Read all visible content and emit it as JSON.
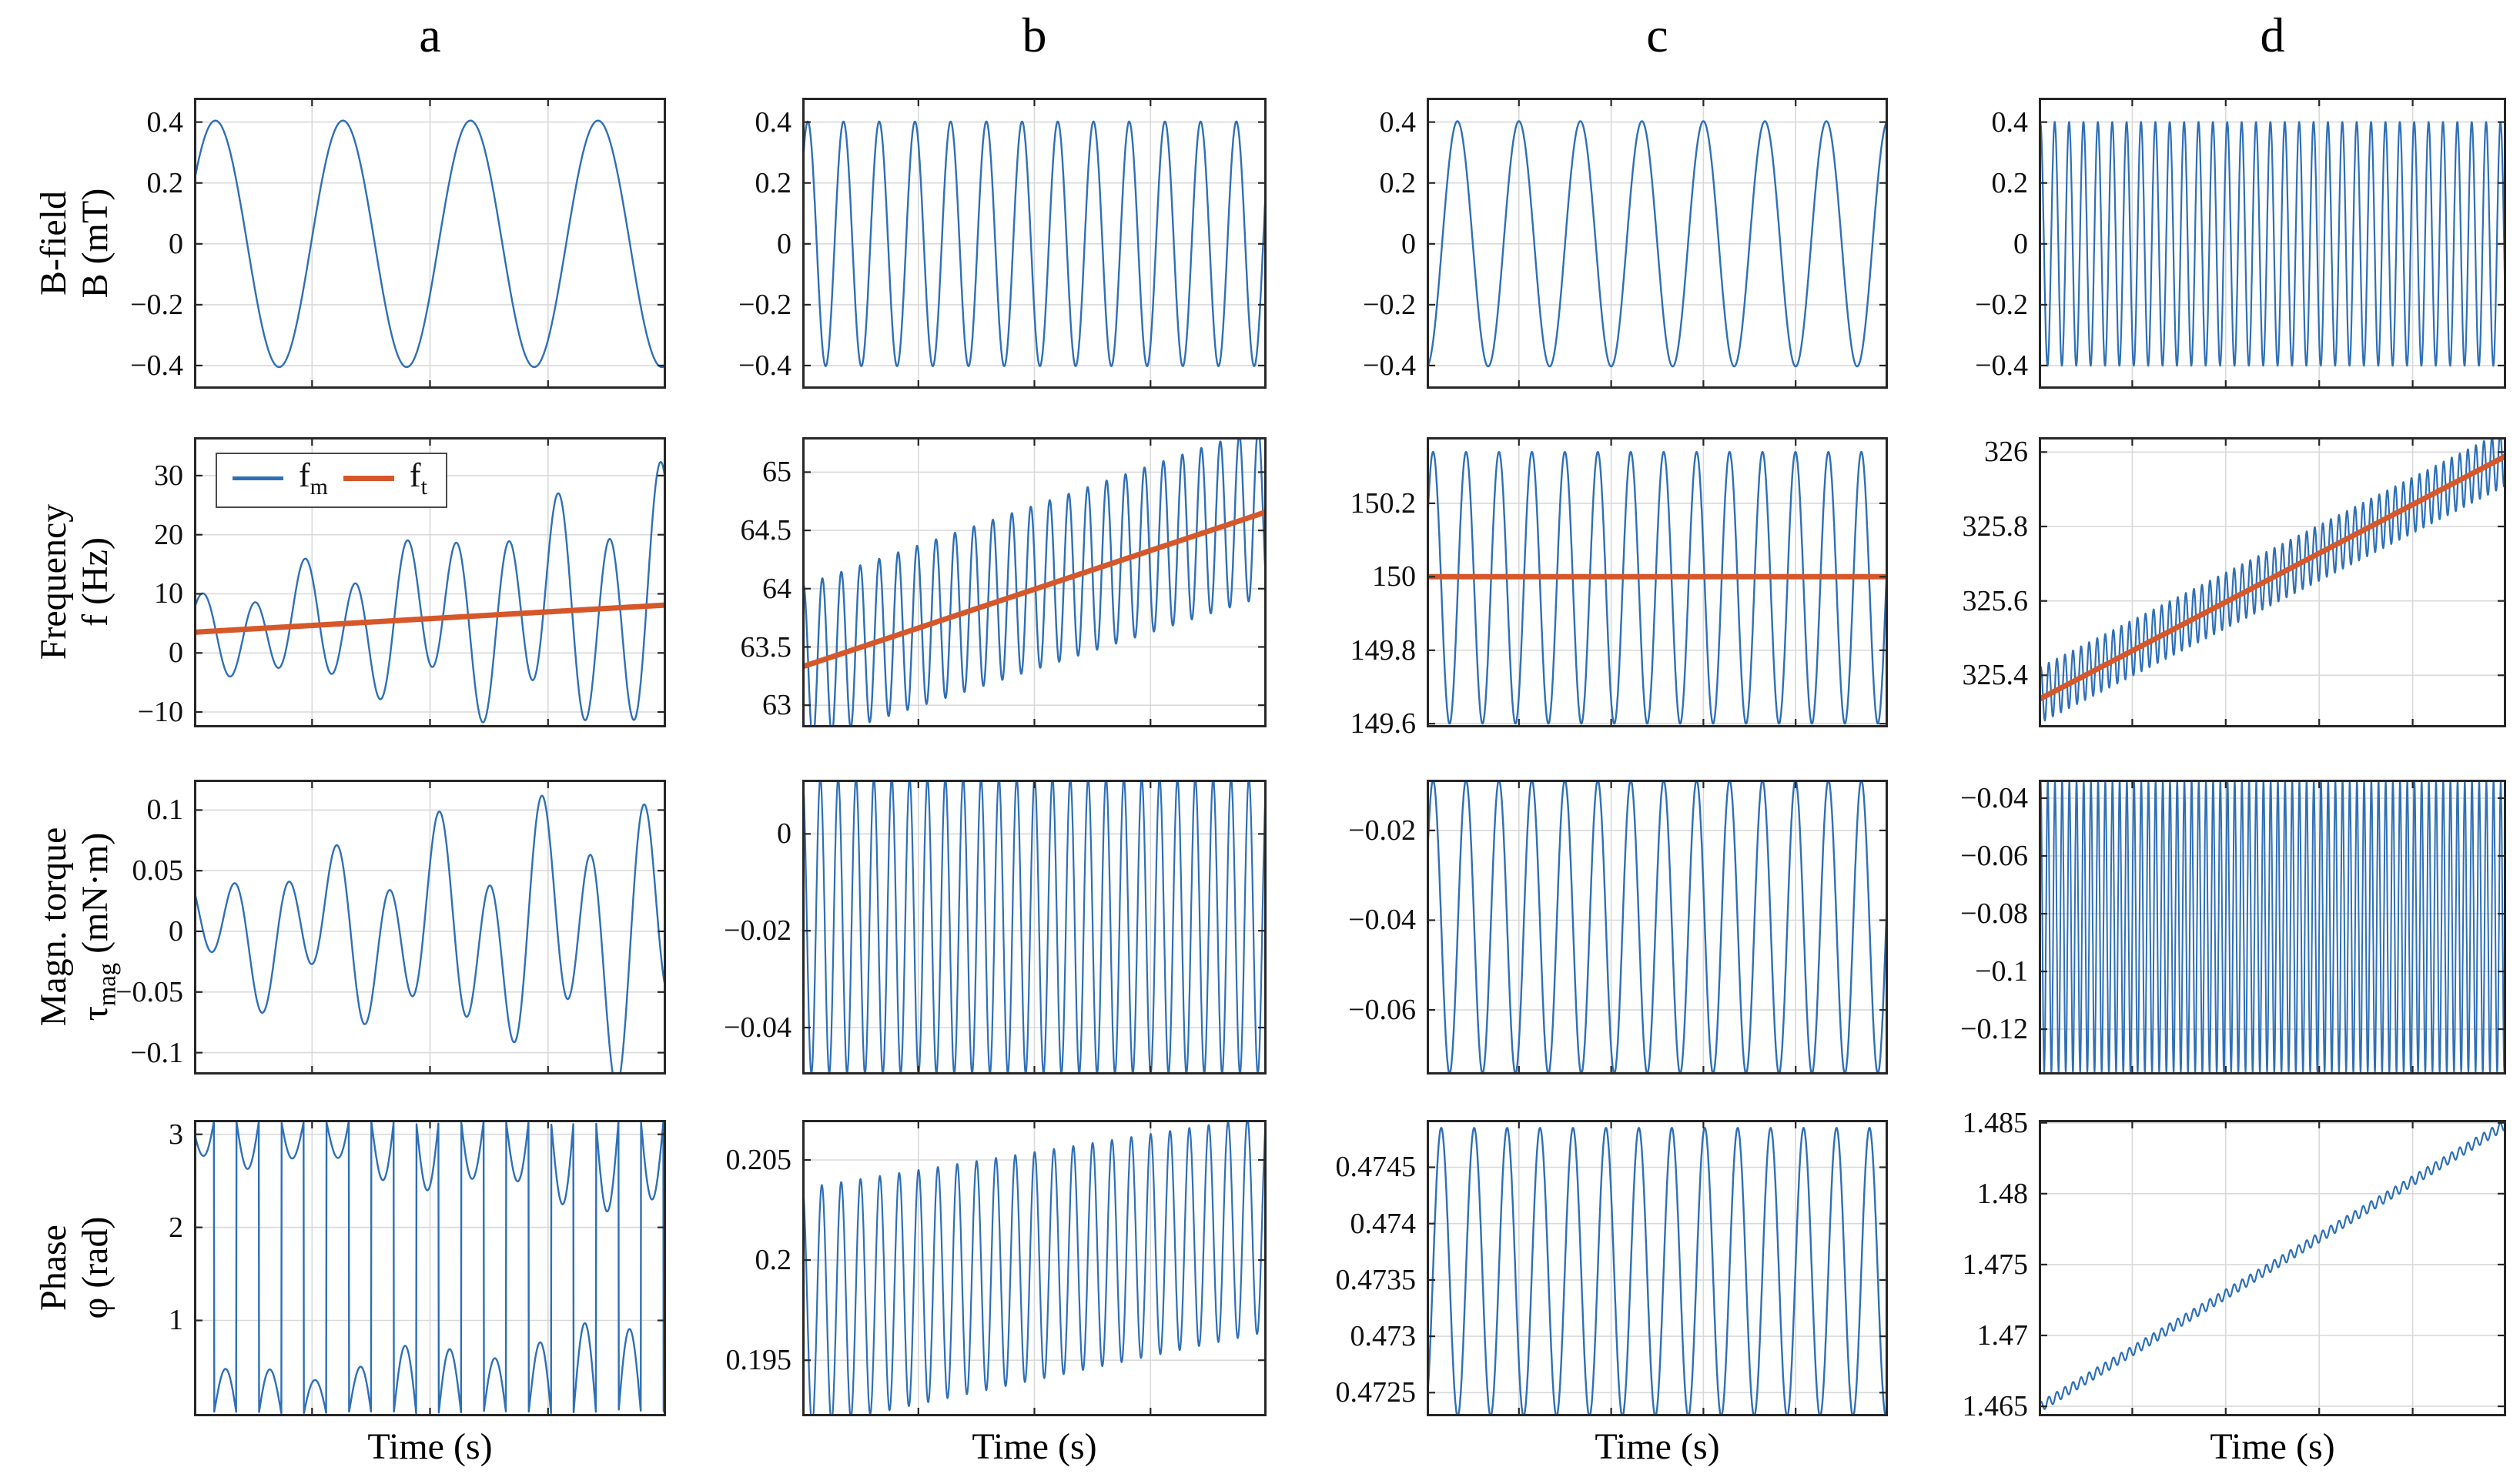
{
  "figure": {
    "colors": {
      "measured_blue": "#2e6fb7",
      "target_orange": "#d6572a",
      "grid": "#d9d9d9",
      "axis_box": "#262626",
      "text": "#000000"
    },
    "columns": [
      {
        "title": "a"
      },
      {
        "title": "b"
      },
      {
        "title": "c"
      },
      {
        "title": "d"
      }
    ],
    "rows": [
      {
        "label": "B-field",
        "sym": "B",
        "sub": "",
        "rest": " (mT)"
      },
      {
        "label": "Frequency",
        "sym": "f",
        "sub": "",
        "rest": " (Hz)"
      },
      {
        "label": "Magn. torque",
        "sym": "τ",
        "sub": "mag",
        "rest": " (mN·m)"
      },
      {
        "label": "Phase",
        "sym": "φ",
        "sub": "",
        "rest": " (rad)"
      }
    ],
    "xlabel": "Time (s)",
    "legend": {
      "entries": [
        {
          "sym": "f",
          "sub": "m",
          "color": "measured_blue"
        },
        {
          "sym": "f",
          "sub": "t",
          "color": "target_orange"
        }
      ]
    }
  },
  "chart_data": [
    {
      "id": "bfield-a",
      "type": "line",
      "row": "B-field",
      "col": "a",
      "ylim": [
        -0.476,
        0.48
      ],
      "ytick_values": [
        0.4,
        0.2,
        0,
        -0.2,
        -0.4
      ],
      "ytick_labels": [
        "0.4",
        "0.2",
        "0",
        "−0.2",
        "−0.4"
      ],
      "x_interior_ticks": 3,
      "series": [
        {
          "name": "B",
          "color": "measured_blue",
          "width": 2.4,
          "gen": {
            "kind": "sine",
            "cycles": 3.7,
            "phase": 0.52,
            "amp0": 0.405,
            "amp1": 0.405,
            "mean0": 0,
            "mean1": 0
          }
        }
      ]
    },
    {
      "id": "bfield-b",
      "type": "line",
      "row": "B-field",
      "col": "b",
      "ylim": [
        -0.476,
        0.48
      ],
      "ytick_values": [
        0.4,
        0.2,
        0,
        -0.2,
        -0.4
      ],
      "ytick_labels": [
        "0.4",
        "0.2",
        "0",
        "−0.2",
        "−0.4"
      ],
      "x_interior_ticks": 3,
      "series": [
        {
          "name": "B",
          "color": "measured_blue",
          "width": 2.4,
          "gen": {
            "kind": "sine",
            "cycles": 13,
            "phase": 0.6,
            "amp0": 0.402,
            "amp1": 0.402,
            "mean0": 0,
            "mean1": 0
          }
        }
      ]
    },
    {
      "id": "bfield-c",
      "type": "line",
      "row": "B-field",
      "col": "c",
      "ylim": [
        -0.476,
        0.48
      ],
      "ytick_values": [
        0.4,
        0.2,
        0,
        -0.2,
        -0.4
      ],
      "ytick_labels": [
        "0.4",
        "0.2",
        "0",
        "−0.2",
        "−0.4"
      ],
      "x_interior_ticks": 4,
      "series": [
        {
          "name": "B",
          "color": "measured_blue",
          "width": 2.4,
          "gen": {
            "kind": "sine",
            "cycles": 7.5,
            "phase": -1.5708,
            "amp0": 0.403,
            "amp1": 0.403,
            "mean0": 0,
            "mean1": 0
          }
        }
      ]
    },
    {
      "id": "bfield-d",
      "type": "line",
      "row": "B-field",
      "col": "d",
      "ylim": [
        -0.476,
        0.48
      ],
      "ytick_values": [
        0.4,
        0.2,
        0,
        -0.2,
        -0.4
      ],
      "ytick_labels": [
        "0.4",
        "0.2",
        "0",
        "−0.2",
        "−0.4"
      ],
      "x_interior_ticks": 4,
      "series": [
        {
          "name": "B",
          "color": "measured_blue",
          "width": 2.2,
          "gen": {
            "kind": "sine",
            "cycles": 32.5,
            "phase": 0.9,
            "amp0": 0.401,
            "amp1": 0.401,
            "mean0": 0,
            "mean1": 0
          }
        }
      ]
    },
    {
      "id": "frequency-a",
      "type": "line",
      "row": "Frequency",
      "col": "a",
      "ylim": [
        -12.6,
        36.5
      ],
      "ytick_values": [
        30,
        20,
        10,
        0,
        -10
      ],
      "ytick_labels": [
        "30",
        "20",
        "10",
        "0",
        "−10"
      ],
      "x_interior_ticks": 3,
      "has_legend": true,
      "series": [
        {
          "name": "f_m",
          "color": "measured_blue",
          "width": 2.4,
          "gen": {
            "kind": "multi",
            "mean0": 3.5,
            "mean1": 8,
            "comps": [
              {
                "c": 9.3,
                "p": 0.4,
                "a0": 5,
                "a1": 19
              },
              {
                "c": 3.9,
                "p": 2.1,
                "a0": 2.2,
                "a1": 6
              }
            ]
          }
        },
        {
          "name": "f_t",
          "color": "target_orange",
          "width": 7,
          "gen": {
            "kind": "line",
            "mean0": 3.5,
            "mean1": 8.1
          }
        }
      ]
    },
    {
      "id": "frequency-b",
      "type": "line",
      "row": "Frequency",
      "col": "b",
      "ylim": [
        62.81,
        65.3
      ],
      "ytick_values": [
        65,
        64.5,
        64,
        63.5,
        63
      ],
      "ytick_labels": [
        "65",
        "64.5",
        "64",
        "63.5",
        "63"
      ],
      "x_interior_ticks": 3,
      "series": [
        {
          "name": "f_m",
          "color": "measured_blue",
          "width": 2.4,
          "gen": {
            "kind": "sine",
            "cycles": 24.5,
            "phase": 1.2,
            "amp0": 0.68,
            "amp1": 0.73,
            "mean0": 63.35,
            "mean1": 64.67
          }
        },
        {
          "name": "f_t",
          "color": "target_orange",
          "width": 7,
          "gen": {
            "kind": "line",
            "mean0": 63.33,
            "mean1": 64.66
          }
        }
      ]
    },
    {
      "id": "frequency-c",
      "type": "line",
      "row": "Frequency",
      "col": "c",
      "ylim": [
        149.59,
        150.38
      ],
      "ytick_values": [
        150.2,
        150,
        149.8,
        149.6
      ],
      "ytick_labels": [
        "150.2",
        "150",
        "149.8",
        "149.6"
      ],
      "x_interior_ticks": 4,
      "series": [
        {
          "name": "f_m",
          "color": "measured_blue",
          "width": 2.4,
          "gen": {
            "kind": "sine",
            "cycles": 14,
            "phase": 0.35,
            "amp0": 0.37,
            "amp1": 0.37,
            "mean0": 149.97,
            "mean1": 149.97
          }
        },
        {
          "name": "f_t",
          "color": "target_orange",
          "width": 7,
          "gen": {
            "kind": "line",
            "mean0": 150.0,
            "mean1": 150.0
          }
        }
      ]
    },
    {
      "id": "frequency-d",
      "type": "line",
      "row": "Frequency",
      "col": "d",
      "ylim": [
        325.26,
        326.04
      ],
      "ytick_values": [
        326,
        325.8,
        325.6,
        325.4
      ],
      "ytick_labels": [
        "326",
        "325.8",
        "325.6",
        "325.4"
      ],
      "x_interior_ticks": 4,
      "series": [
        {
          "name": "f_m",
          "color": "measured_blue",
          "width": 2.2,
          "gen": {
            "kind": "sine",
            "cycles": 58,
            "phase": 0,
            "amp0": 0.075,
            "amp1": 0.075,
            "mean0": 325.345,
            "mean1": 325.985
          }
        },
        {
          "name": "f_t",
          "color": "target_orange",
          "width": 7,
          "gen": {
            "kind": "line",
            "mean0": 325.335,
            "mean1": 325.99
          }
        }
      ]
    },
    {
      "id": "torque-a",
      "type": "line",
      "row": "Magn. torque",
      "col": "a",
      "ylim": [
        -0.118,
        0.125
      ],
      "ytick_values": [
        0.1,
        0.05,
        0,
        -0.05,
        -0.1
      ],
      "ytick_labels": [
        "0.1",
        "0.05",
        "0",
        "−0.05",
        "−0.1"
      ],
      "x_interior_ticks": 3,
      "series": [
        {
          "name": "tau_mag",
          "color": "measured_blue",
          "width": 2.4,
          "gen": {
            "kind": "multi",
            "mean0": 0,
            "mean1": 0,
            "comps": [
              {
                "c": 9.3,
                "p": 2.6,
                "a0": 0.035,
                "a1": 0.095
              },
              {
                "c": 4.1,
                "p": 0.9,
                "a0": 0.02,
                "a1": 0.045
              }
            ]
          }
        }
      ]
    },
    {
      "id": "torque-b",
      "type": "line",
      "row": "Magn. torque",
      "col": "b",
      "ylim": [
        -0.0497,
        0.0112
      ],
      "ytick_values": [
        0,
        -0.02,
        -0.04
      ],
      "ytick_labels": [
        "0",
        "−0.02",
        "−0.04"
      ],
      "x_interior_ticks": 3,
      "series": [
        {
          "name": "tau_mag",
          "color": "measured_blue",
          "width": 2.2,
          "gen": {
            "kind": "sine",
            "cycles": 26,
            "phase": 1.5,
            "amp0": 0.0305,
            "amp1": 0.0305,
            "mean0": -0.019,
            "mean1": -0.019
          }
        }
      ]
    },
    {
      "id": "torque-c",
      "type": "line",
      "row": "Magn. torque",
      "col": "c",
      "ylim": [
        -0.0744,
        -0.0087
      ],
      "ytick_values": [
        -0.02,
        -0.04,
        -0.06
      ],
      "ytick_labels": [
        "−0.02",
        "−0.04",
        "−0.06"
      ],
      "x_interior_ticks": 4,
      "series": [
        {
          "name": "tau_mag",
          "color": "measured_blue",
          "width": 2.4,
          "gen": {
            "kind": "sine",
            "cycles": 14,
            "phase": 0.35,
            "amp0": 0.0327,
            "amp1": 0.0327,
            "mean0": -0.0415,
            "mean1": -0.0415
          }
        }
      ]
    },
    {
      "id": "torque-d",
      "type": "line",
      "row": "Magn. torque",
      "col": "d",
      "ylim": [
        -0.1357,
        -0.0336
      ],
      "ytick_values": [
        -0.04,
        -0.06,
        -0.08,
        -0.1,
        -0.12
      ],
      "ytick_labels": [
        "−0.04",
        "−0.06",
        "−0.08",
        "−0.1",
        "−0.12"
      ],
      "x_interior_ticks": 4,
      "series": [
        {
          "name": "tau_mag",
          "color": "measured_blue",
          "width": 2.0,
          "gen": {
            "kind": "sine",
            "cycles": 65,
            "phase": 0,
            "amp0": 0.0505,
            "amp1": 0.0505,
            "mean0": -0.0845,
            "mean1": -0.0845
          }
        }
      ]
    },
    {
      "id": "phase-a",
      "type": "line",
      "row": "Phase",
      "col": "a",
      "ylim": [
        -0.03,
        3.155
      ],
      "ytick_values": [
        3,
        2,
        1
      ],
      "ytick_labels": [
        "3",
        "2",
        "1"
      ],
      "x_interior_ticks": 3,
      "series": [
        {
          "name": "phi",
          "color": "measured_blue",
          "width": 2.4,
          "gen": {
            "kind": "wrapped",
            "cycles": 10.5,
            "phase": 3.5,
            "amp0": 0.32,
            "amp1": 0.95,
            "mod_amp": 0.13,
            "mod_cycles": 2.7
          }
        }
      ]
    },
    {
      "id": "phase-b",
      "type": "line",
      "row": "Phase",
      "col": "b",
      "ylim": [
        0.1922,
        0.207
      ],
      "ytick_values": [
        0.205,
        0.2,
        0.195
      ],
      "ytick_labels": [
        "0.205",
        "0.2",
        "0.195"
      ],
      "x_interior_ticks": 3,
      "series": [
        {
          "name": "phi",
          "color": "measured_blue",
          "width": 2.2,
          "gen": {
            "kind": "sine",
            "cycles": 24,
            "phase": 1.5,
            "amp0": 0.006,
            "amp1": 0.0054,
            "mean0": 0.1976,
            "mean1": 0.2018
          }
        }
      ]
    },
    {
      "id": "phase-c",
      "type": "line",
      "row": "Phase",
      "col": "c",
      "ylim": [
        0.47229,
        0.47492
      ],
      "ytick_values": [
        0.4745,
        0.474,
        0.4735,
        0.473,
        0.4725
      ],
      "ytick_labels": [
        "0.4745",
        "0.474",
        "0.4735",
        "0.473",
        "0.4725"
      ],
      "x_interior_ticks": 4,
      "series": [
        {
          "name": "phi",
          "color": "measured_blue",
          "width": 2.4,
          "gen": {
            "kind": "sine",
            "cycles": 14,
            "phase": -1.2,
            "amp0": 0.00128,
            "amp1": 0.00128,
            "mean0": 0.47357,
            "mean1": 0.47357
          }
        }
      ]
    },
    {
      "id": "phase-d",
      "type": "line",
      "row": "Phase",
      "col": "d",
      "ylim": [
        1.4643,
        1.4852
      ],
      "ytick_values": [
        1.485,
        1.48,
        1.475,
        1.47,
        1.465
      ],
      "ytick_labels": [
        "1.485",
        "1.48",
        "1.475",
        "1.47",
        "1.465"
      ],
      "x_interior_ticks": 4,
      "series": [
        {
          "name": "phi",
          "color": "measured_blue",
          "width": 2.2,
          "gen": {
            "kind": "sine",
            "cycles": 58,
            "phase": 0,
            "amp0": 0.00035,
            "amp1": 0.00035,
            "mean0": 1.4649,
            "mean1": 1.4849
          }
        }
      ]
    }
  ]
}
